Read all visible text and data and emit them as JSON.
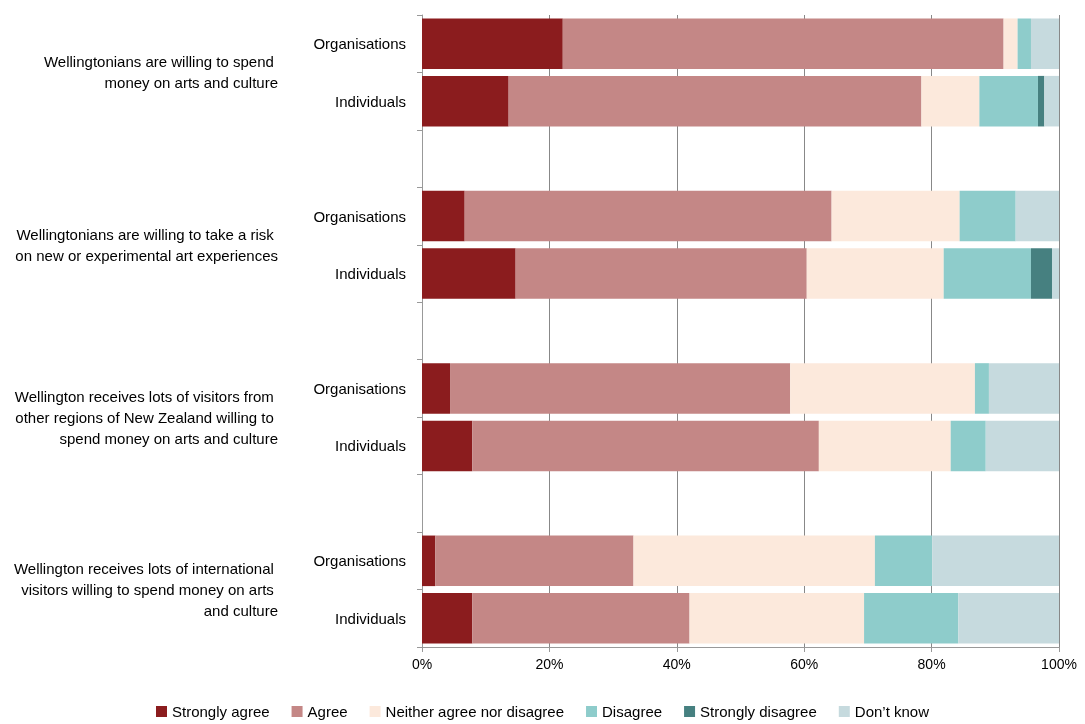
{
  "chart_data": {
    "type": "bar",
    "orientation": "horizontal",
    "stacked": true,
    "categories": [
      "Organisations",
      "Individuals",
      null,
      "Organisations",
      "Individuals",
      null,
      "Organisations",
      "Individuals",
      null,
      "Organisations",
      "Individuals"
    ],
    "series": [
      {
        "name": "Strongly agree",
        "color": "#8b1c1e",
        "values": [
          22.1,
          13.6,
          null,
          6.7,
          14.7,
          null,
          4.4,
          7.9,
          null,
          2.1,
          7.9
        ]
      },
      {
        "name": "Agree",
        "color": "#c48786",
        "values": [
          69.2,
          64.8,
          null,
          57.6,
          45.7,
          null,
          53.4,
          54.4,
          null,
          31.1,
          34.1
        ]
      },
      {
        "name": "Neither agree nor disagree",
        "color": "#fce9dc",
        "values": [
          2.2,
          9.1,
          null,
          20.1,
          21.5,
          null,
          29.0,
          20.7,
          null,
          37.9,
          27.4
        ]
      },
      {
        "name": "Disagree",
        "color": "#8ecccb",
        "values": [
          2.1,
          9.2,
          null,
          8.8,
          13.7,
          null,
          2.2,
          5.5,
          null,
          9.0,
          14.8
        ]
      },
      {
        "name": "Strongly disagree",
        "color": "#468080",
        "values": [
          0,
          1.0,
          null,
          0,
          3.3,
          null,
          0,
          0,
          null,
          0,
          0
        ]
      },
      {
        "name": "Don’t know",
        "color": "#c6dade",
        "values": [
          4.4,
          2.3,
          null,
          6.8,
          1.1,
          null,
          11.0,
          11.5,
          null,
          19.9,
          15.8
        ]
      }
    ],
    "xlim": [
      0,
      100
    ],
    "xticks": [
      {
        "value": 0,
        "label": "0%"
      },
      {
        "value": 20,
        "label": "20%"
      },
      {
        "value": 40,
        "label": "40%"
      },
      {
        "value": 60,
        "label": "60%"
      },
      {
        "value": 80,
        "label": "80%"
      },
      {
        "value": 100,
        "label": "100%"
      }
    ],
    "grid": "x",
    "legend": "bottom",
    "annotations": [
      "Wellingtonians are willing to spend money on arts and culture",
      "Wellingtonians are willing to take a risk on new or experimental art experiences",
      "Wellington receives lots of visitors from other regions of New Zealand willing to spend money on arts and culture",
      "Wellington receives lots of international visitors willing to spend money on arts and culture"
    ]
  }
}
